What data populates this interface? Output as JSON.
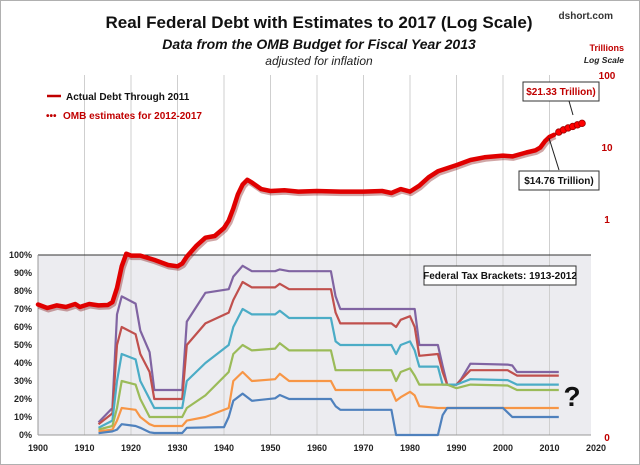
{
  "chart_data": {
    "type": "line",
    "title": "Real Federal Debt with Estimates to 2017 (Log Scale)",
    "subtitle": "Data from the OMB Budget for Fiscal Year 2013",
    "subtitle2": "adjusted for inflation",
    "source": "dshort.com",
    "x_axis": {
      "range": [
        1900,
        2020
      ],
      "ticks": [
        "1900",
        "1910",
        "1920",
        "1930",
        "1940",
        "1950",
        "1960",
        "1970",
        "1980",
        "1990",
        "2000",
        "2010",
        "2020"
      ]
    },
    "y_left": {
      "range": [
        0,
        100
      ],
      "unit": "%",
      "ticks": [
        "0%",
        "10%",
        "20%",
        "30%",
        "40%",
        "50%",
        "60%",
        "70%",
        "80%",
        "90%",
        "100%"
      ]
    },
    "y_right": {
      "label": "Trillions",
      "scale_label": "Log Scale",
      "scale": "log",
      "ticks": [
        "100",
        "10",
        "1",
        "0"
      ],
      "color": "#c00000"
    },
    "grid": "vertical",
    "legend": {
      "placement": "top-left",
      "items": [
        {
          "label": "Actual Debt Through 2011",
          "style": "solid",
          "color": "#c00000"
        },
        {
          "label": "OMB estimates for 2012-2017",
          "style": "dotted",
          "color": "#c00000"
        }
      ]
    },
    "annotations": {
      "estimate_2017": "$21.33 Trillion)",
      "actual_2011": "$14.76 Trillion)",
      "tax_box": "Federal Tax Brackets: 1913-2012",
      "question": "?"
    },
    "debt_series": {
      "name": "Actual Debt Through 2011",
      "unit": "trillions",
      "points": [
        [
          1900,
          0.065
        ],
        [
          1902,
          0.058
        ],
        [
          1904,
          0.063
        ],
        [
          1906,
          0.06
        ],
        [
          1908,
          0.066
        ],
        [
          1909,
          0.06
        ],
        [
          1911,
          0.066
        ],
        [
          1913,
          0.063
        ],
        [
          1915,
          0.064
        ],
        [
          1916,
          0.07
        ],
        [
          1917,
          0.11
        ],
        [
          1918,
          0.22
        ],
        [
          1919,
          0.33
        ],
        [
          1920,
          0.31
        ],
        [
          1922,
          0.31
        ],
        [
          1925,
          0.27
        ],
        [
          1928,
          0.23
        ],
        [
          1930,
          0.22
        ],
        [
          1931,
          0.24
        ],
        [
          1932,
          0.3
        ],
        [
          1934,
          0.42
        ],
        [
          1936,
          0.55
        ],
        [
          1938,
          0.58
        ],
        [
          1940,
          0.75
        ],
        [
          1941,
          0.95
        ],
        [
          1942,
          1.4
        ],
        [
          1943,
          2.2
        ],
        [
          1944,
          3.0
        ],
        [
          1945,
          3.5
        ],
        [
          1946,
          3.2
        ],
        [
          1948,
          2.6
        ],
        [
          1950,
          2.45
        ],
        [
          1953,
          2.5
        ],
        [
          1956,
          2.4
        ],
        [
          1960,
          2.45
        ],
        [
          1965,
          2.4
        ],
        [
          1970,
          2.4
        ],
        [
          1974,
          2.45
        ],
        [
          1976,
          2.3
        ],
        [
          1978,
          2.6
        ],
        [
          1980,
          2.4
        ],
        [
          1982,
          2.9
        ],
        [
          1984,
          3.8
        ],
        [
          1986,
          4.6
        ],
        [
          1990,
          5.6
        ],
        [
          1993,
          6.6
        ],
        [
          1996,
          7.2
        ],
        [
          2000,
          7.6
        ],
        [
          2002,
          7.4
        ],
        [
          2005,
          8.4
        ],
        [
          2007,
          9.0
        ],
        [
          2008,
          9.8
        ],
        [
          2009,
          12.0
        ],
        [
          2010,
          13.8
        ],
        [
          2011,
          14.76
        ]
      ]
    },
    "estimate_series": {
      "name": "OMB estimates for 2012-2017",
      "unit": "trillions",
      "points": [
        [
          2012,
          16.1
        ],
        [
          2013,
          17.3
        ],
        [
          2014,
          18.4
        ],
        [
          2015,
          19.3
        ],
        [
          2016,
          20.3
        ],
        [
          2017,
          21.33
        ]
      ]
    },
    "tax_series": [
      {
        "color": "#8064a2",
        "points": [
          [
            1913,
            7
          ],
          [
            1916,
            15
          ],
          [
            1917,
            67
          ],
          [
            1918,
            77
          ],
          [
            1921,
            73
          ],
          [
            1922,
            58
          ],
          [
            1924,
            46
          ],
          [
            1925,
            25
          ],
          [
            1931,
            25
          ],
          [
            1932,
            63
          ],
          [
            1936,
            79
          ],
          [
            1941,
            81
          ],
          [
            1942,
            88
          ],
          [
            1944,
            94
          ],
          [
            1946,
            91
          ],
          [
            1951,
            91
          ],
          [
            1952,
            92
          ],
          [
            1954,
            91
          ],
          [
            1963,
            91
          ],
          [
            1964,
            77
          ],
          [
            1965,
            70
          ],
          [
            1981,
            70
          ],
          [
            1982,
            50
          ],
          [
            1986,
            50
          ],
          [
            1987,
            38.5
          ],
          [
            1988,
            28
          ],
          [
            1990,
            28
          ],
          [
            1991,
            31
          ],
          [
            1993,
            39.6
          ],
          [
            2001,
            39.1
          ],
          [
            2002,
            38.6
          ],
          [
            2003,
            35
          ],
          [
            2012,
            35
          ]
        ]
      },
      {
        "color": "#c0504d",
        "points": [
          [
            1913,
            6
          ],
          [
            1916,
            12
          ],
          [
            1917,
            50
          ],
          [
            1918,
            60
          ],
          [
            1921,
            56
          ],
          [
            1922,
            45
          ],
          [
            1924,
            35
          ],
          [
            1925,
            20
          ],
          [
            1931,
            20
          ],
          [
            1932,
            50
          ],
          [
            1936,
            62
          ],
          [
            1941,
            68
          ],
          [
            1942,
            75
          ],
          [
            1944,
            85
          ],
          [
            1946,
            82
          ],
          [
            1951,
            82
          ],
          [
            1952,
            84
          ],
          [
            1954,
            81
          ],
          [
            1963,
            81
          ],
          [
            1964,
            68
          ],
          [
            1965,
            62
          ],
          [
            1976,
            62
          ],
          [
            1977,
            60
          ],
          [
            1978,
            64
          ],
          [
            1980,
            66
          ],
          [
            1981,
            60
          ],
          [
            1982,
            44
          ],
          [
            1986,
            45
          ],
          [
            1987,
            35
          ],
          [
            1988,
            28
          ],
          [
            1990,
            28
          ],
          [
            1993,
            36
          ],
          [
            2001,
            36
          ],
          [
            2003,
            33
          ],
          [
            2012,
            33
          ]
        ]
      },
      {
        "color": "#4bacc6",
        "points": [
          [
            1913,
            4
          ],
          [
            1916,
            8
          ],
          [
            1917,
            30
          ],
          [
            1918,
            45
          ],
          [
            1921,
            42
          ],
          [
            1922,
            30
          ],
          [
            1924,
            20
          ],
          [
            1925,
            15
          ],
          [
            1931,
            15
          ],
          [
            1932,
            30
          ],
          [
            1936,
            40
          ],
          [
            1941,
            50
          ],
          [
            1942,
            60
          ],
          [
            1944,
            70
          ],
          [
            1946,
            67
          ],
          [
            1951,
            67
          ],
          [
            1952,
            69
          ],
          [
            1954,
            65
          ],
          [
            1963,
            65
          ],
          [
            1964,
            52
          ],
          [
            1965,
            50
          ],
          [
            1976,
            50
          ],
          [
            1977,
            45
          ],
          [
            1978,
            50
          ],
          [
            1980,
            52
          ],
          [
            1981,
            47
          ],
          [
            1982,
            38
          ],
          [
            1986,
            38
          ],
          [
            1987,
            28
          ],
          [
            1988,
            28
          ],
          [
            1990,
            28
          ],
          [
            1993,
            31
          ],
          [
            2001,
            30.5
          ],
          [
            2003,
            28
          ],
          [
            2012,
            28
          ]
        ]
      },
      {
        "color": "#9bbb59",
        "points": [
          [
            1913,
            3
          ],
          [
            1916,
            5
          ],
          [
            1917,
            15
          ],
          [
            1918,
            30
          ],
          [
            1921,
            28
          ],
          [
            1922,
            20
          ],
          [
            1924,
            10
          ],
          [
            1925,
            10
          ],
          [
            1931,
            10
          ],
          [
            1932,
            15
          ],
          [
            1936,
            22
          ],
          [
            1941,
            35
          ],
          [
            1942,
            45
          ],
          [
            1944,
            50
          ],
          [
            1946,
            47
          ],
          [
            1951,
            48
          ],
          [
            1952,
            51
          ],
          [
            1954,
            47
          ],
          [
            1963,
            47
          ],
          [
            1964,
            36
          ],
          [
            1965,
            36
          ],
          [
            1976,
            36
          ],
          [
            1977,
            30
          ],
          [
            1978,
            35
          ],
          [
            1980,
            37
          ],
          [
            1981,
            33
          ],
          [
            1982,
            28
          ],
          [
            1986,
            28
          ],
          [
            1987,
            28
          ],
          [
            1988,
            28
          ],
          [
            1990,
            26
          ],
          [
            1993,
            28
          ],
          [
            2001,
            27.5
          ],
          [
            2003,
            25
          ],
          [
            2012,
            25
          ]
        ]
      },
      {
        "color": "#f79646",
        "points": [
          [
            1913,
            2
          ],
          [
            1916,
            3
          ],
          [
            1917,
            8
          ],
          [
            1918,
            15
          ],
          [
            1921,
            14
          ],
          [
            1922,
            10
          ],
          [
            1924,
            6
          ],
          [
            1925,
            5
          ],
          [
            1931,
            5
          ],
          [
            1932,
            8
          ],
          [
            1936,
            10
          ],
          [
            1941,
            15
          ],
          [
            1942,
            30
          ],
          [
            1944,
            35
          ],
          [
            1946,
            30
          ],
          [
            1951,
            31
          ],
          [
            1952,
            34
          ],
          [
            1954,
            30
          ],
          [
            1963,
            30
          ],
          [
            1964,
            25
          ],
          [
            1965,
            25
          ],
          [
            1976,
            25
          ],
          [
            1977,
            19
          ],
          [
            1978,
            21
          ],
          [
            1980,
            24
          ],
          [
            1981,
            22
          ],
          [
            1982,
            16
          ],
          [
            1986,
            15
          ],
          [
            1987,
            15
          ],
          [
            1988,
            15
          ],
          [
            2000,
            15
          ],
          [
            2001,
            15
          ],
          [
            2002,
            15
          ],
          [
            2012,
            15
          ]
        ]
      },
      {
        "color": "#4f81bd",
        "points": [
          [
            1913,
            1
          ],
          [
            1916,
            2
          ],
          [
            1917,
            3
          ],
          [
            1918,
            6
          ],
          [
            1921,
            5
          ],
          [
            1922,
            4
          ],
          [
            1924,
            1.5
          ],
          [
            1925,
            1.1
          ],
          [
            1931,
            1.1
          ],
          [
            1932,
            4
          ],
          [
            1940,
            4.4
          ],
          [
            1941,
            10
          ],
          [
            1942,
            19
          ],
          [
            1944,
            23
          ],
          [
            1946,
            19
          ],
          [
            1951,
            20.4
          ],
          [
            1952,
            22.2
          ],
          [
            1954,
            20
          ],
          [
            1963,
            20
          ],
          [
            1964,
            16
          ],
          [
            1965,
            14
          ],
          [
            1976,
            14
          ],
          [
            1977,
            0
          ],
          [
            1986,
            0
          ],
          [
            1987,
            11
          ],
          [
            1988,
            15
          ],
          [
            2000,
            15
          ],
          [
            2002,
            10
          ],
          [
            2012,
            10
          ]
        ]
      }
    ]
  }
}
